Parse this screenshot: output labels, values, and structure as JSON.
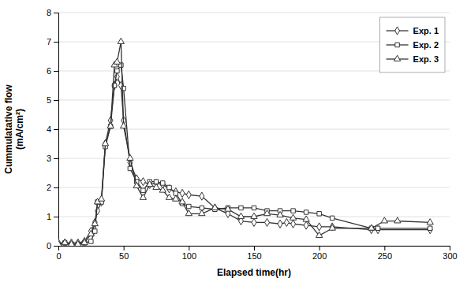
{
  "chart_data": {
    "type": "line",
    "xlabel": "Elapsed time(hr)",
    "ylabel": "Cummulatative flow\n(mA/cm²)",
    "xlim": [
      0,
      300
    ],
    "ylim": [
      0,
      8
    ],
    "xticks": [
      0,
      50,
      100,
      150,
      200,
      250,
      300
    ],
    "yticks": [
      0,
      1,
      2,
      3,
      4,
      5,
      6,
      7,
      8
    ],
    "grid": "y",
    "legend": "upper right",
    "series": [
      {
        "name": "Exp. 1",
        "color": "#333333",
        "marker": "diamond",
        "line_style": "solid",
        "x": [
          0,
          5,
          10,
          15,
          20,
          25,
          28,
          30,
          33,
          36,
          40,
          43,
          45,
          48,
          50,
          55,
          60,
          65,
          70,
          75,
          80,
          85,
          90,
          95,
          100,
          110,
          120,
          130,
          140,
          150,
          160,
          170,
          175,
          180,
          190,
          200,
          210,
          240,
          245,
          285
        ],
        "values": [
          0.1,
          0.1,
          0.1,
          0.1,
          0.15,
          0.5,
          0.8,
          1.2,
          1.5,
          3.5,
          4.3,
          5.5,
          5.8,
          5.5,
          4.3,
          2.85,
          2.3,
          2.2,
          2.1,
          2.15,
          2.1,
          1.95,
          1.85,
          1.8,
          1.75,
          1.7,
          1.3,
          1.1,
          0.85,
          0.8,
          0.8,
          0.75,
          0.8,
          0.75,
          0.7,
          0.65,
          0.65,
          0.55,
          0.55,
          0.55
        ]
      },
      {
        "name": "Exp. 2",
        "color": "#333333",
        "marker": "square",
        "line_style": "solid",
        "x": [
          0,
          5,
          10,
          15,
          20,
          25,
          28,
          30,
          33,
          36,
          40,
          43,
          45,
          48,
          50,
          55,
          60,
          65,
          70,
          75,
          80,
          85,
          90,
          95,
          100,
          110,
          120,
          130,
          140,
          150,
          160,
          170,
          180,
          190,
          200,
          210,
          240,
          245,
          285
        ],
        "values": [
          0.05,
          0.1,
          0.05,
          0.05,
          0.1,
          0.15,
          0.5,
          1.5,
          1.5,
          3.4,
          4.1,
          5.5,
          6.0,
          6.2,
          5.4,
          2.65,
          2.2,
          1.9,
          2.2,
          2.2,
          2.15,
          2.0,
          1.8,
          1.45,
          1.35,
          1.3,
          1.25,
          1.3,
          1.3,
          1.3,
          1.2,
          1.2,
          1.2,
          1.15,
          1.1,
          0.95,
          0.6,
          0.6,
          0.6
        ]
      },
      {
        "name": "Exp. 3",
        "color": "#333333",
        "marker": "triangle",
        "line_style": "solid",
        "x": [
          0,
          5,
          10,
          15,
          20,
          25,
          28,
          30,
          33,
          36,
          40,
          43,
          45,
          48,
          50,
          55,
          60,
          65,
          70,
          75,
          80,
          85,
          90,
          95,
          100,
          110,
          120,
          130,
          140,
          150,
          160,
          170,
          180,
          190,
          200,
          210,
          240,
          250,
          260,
          285
        ],
        "values": [
          0.05,
          0.1,
          0.05,
          0.05,
          0.1,
          0.4,
          0.75,
          1.5,
          1.6,
          3.5,
          4.1,
          6.2,
          6.3,
          7.0,
          4.1,
          3.0,
          2.05,
          1.65,
          2.1,
          2.0,
          1.9,
          1.65,
          1.6,
          1.5,
          1.1,
          1.1,
          1.3,
          1.25,
          1.0,
          1.0,
          1.1,
          1.05,
          0.95,
          0.9,
          0.35,
          0.6,
          0.6,
          0.85,
          0.85,
          0.8
        ]
      }
    ]
  }
}
